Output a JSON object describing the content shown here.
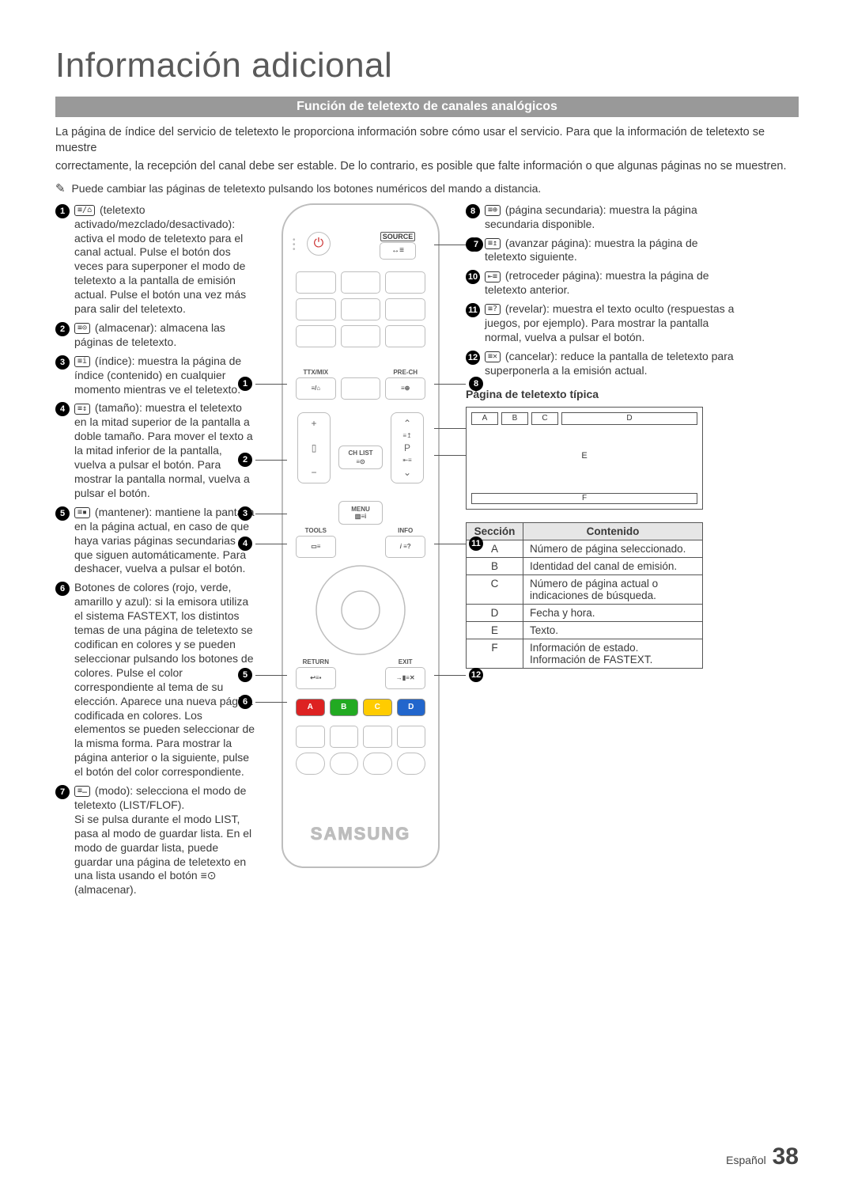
{
  "page_title": "Información adicional",
  "banner": "Función de teletexto de canales analógicos",
  "intro": {
    "p1": "La página de índice del servicio de teletexto le proporciona información sobre cómo usar el servicio. Para que la información de teletexto se muestre",
    "p2": "correctamente, la recepción del canal debe ser estable. De lo contrario, es posible que falte información o que algunas páginas no se muestren."
  },
  "note": "Puede cambiar las páginas de teletexto pulsando los botones numéricos del mando a distancia.",
  "left_items": [
    {
      "num": "1",
      "icon": "≡/⌂",
      "text": "(teletexto activado/mezclado/desactivado): activa el modo de teletexto para el canal actual. Pulse el botón dos veces para superponer el modo de teletexto a la pantalla de emisión actual. Pulse el botón una vez más para salir del teletexto."
    },
    {
      "num": "2",
      "icon": "≡⊙",
      "text": "(almacenar): almacena las páginas de teletexto."
    },
    {
      "num": "3",
      "icon": "≡i",
      "text": "(índice): muestra la página de índice (contenido) en cualquier momento mientras ve el teletexto."
    },
    {
      "num": "4",
      "icon": "≡↕",
      "text": "(tamaño): muestra el teletexto en la mitad superior de la pantalla a doble tamaño. Para mover el texto a la mitad inferior de la pantalla, vuelva a pulsar el botón. Para mostrar la pantalla normal, vuelva a pulsar el botón."
    },
    {
      "num": "5",
      "icon": "≡▪",
      "text": "(mantener): mantiene la pantalla en la página actual, en caso de que haya varias páginas secundarias que siguen automáticamente. Para deshacer, vuelva a pulsar el botón."
    },
    {
      "num": "6",
      "icon": "",
      "text": "Botones de colores (rojo, verde, amarillo y azul): si la emisora utiliza el sistema FASTEXT, los distintos temas de una página de teletexto se codifican en colores y se pueden seleccionar pulsando los botones de colores. Pulse el color correspondiente al tema de su elección. Aparece una nueva página codificada en colores. Los elementos se pueden seleccionar de la misma forma. Para mostrar la página anterior o la siguiente, pulse el botón del color correspondiente."
    },
    {
      "num": "7",
      "icon": "≡…",
      "text": "(modo): selecciona el modo de teletexto (LIST/FLOF).\nSi se pulsa durante el modo LIST, pasa al modo de guardar lista. En el modo de guardar lista, puede guardar una página de teletexto en una lista usando el botón ≡⊙ (almacenar)."
    }
  ],
  "right_items": [
    {
      "num": "8",
      "icon": "≡⊕",
      "text": "(página secundaria): muestra la página secundaria disponible."
    },
    {
      "num": "9",
      "icon": "≡↥",
      "text": "(avanzar página): muestra la página de teletexto siguiente."
    },
    {
      "num": "10",
      "icon": "⇤≡",
      "text": "(retroceder página): muestra la página de teletexto anterior."
    },
    {
      "num": "11",
      "icon": "≡?",
      "text": "(revelar): muestra el texto oculto (respuestas a juegos, por ejemplo). Para mostrar la pantalla normal, vuelva a pulsar el botón."
    },
    {
      "num": "12",
      "icon": "≡✕",
      "text": "(cancelar): reduce la pantalla de teletexto para superponerla a la emisión actual."
    }
  ],
  "remote": {
    "source": "SOURCE",
    "ttx": "TTX/MIX",
    "prech": "PRE-CH",
    "chlist": "CH LIST",
    "menu": "MENU",
    "tools": "TOOLS",
    "info": "INFO",
    "return": "RETURN",
    "exit": "EXIT",
    "brand": "SAMSUNG",
    "colors": {
      "a": "A",
      "b": "B",
      "c": "C",
      "d": "D"
    },
    "p_label": "P"
  },
  "callouts_left": {
    "1": 228,
    "2": 324,
    "3": 392,
    "4": 430,
    "5": 596,
    "6": 630
  },
  "callouts_right": {
    "7": 52,
    "8": 228,
    "9": 284,
    "10": 318,
    "11": 430,
    "12": 596
  },
  "tt_title": "Página de teletexto típica",
  "tt_boxes": {
    "a": "A",
    "b": "B",
    "c": "C",
    "d": "D",
    "e": "E",
    "f": "F"
  },
  "table": {
    "head": {
      "seccion": "Sección",
      "contenido": "Contenido"
    },
    "rows": [
      {
        "k": "A",
        "v": "Número de página seleccionado."
      },
      {
        "k": "B",
        "v": "Identidad del canal de emisión."
      },
      {
        "k": "C",
        "v": "Número de página actual o indicaciones de búsqueda."
      },
      {
        "k": "D",
        "v": "Fecha y hora."
      },
      {
        "k": "E",
        "v": "Texto."
      },
      {
        "k": "F",
        "v": "Información de estado. Información de FASTEXT."
      }
    ]
  },
  "footer": {
    "lang": "Español",
    "page": "38"
  },
  "colors": {
    "banner_bg": "#999999",
    "text": "#3a3a3a",
    "red": "#dd2222",
    "green": "#22aa22",
    "yellow": "#ffcc00",
    "blue": "#2266cc",
    "remote_border": "#bdbdbd"
  }
}
